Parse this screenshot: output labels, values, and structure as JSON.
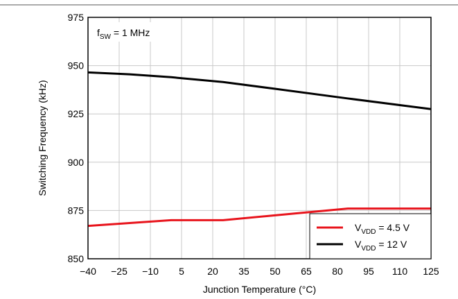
{
  "chart_data": {
    "type": "line",
    "annotation": {
      "main": "f",
      "sub": "SW",
      "rest": " = 1 MHz"
    },
    "xlabel": "Junction Temperature (°C)",
    "ylabel": "Switching Frequency (kHz)",
    "xlim": [
      -40,
      125
    ],
    "ylim": [
      850,
      975
    ],
    "xticks": [
      -40,
      -25,
      -10,
      5,
      20,
      35,
      50,
      65,
      80,
      95,
      110,
      125
    ],
    "xtick_labels": [
      "−40",
      "−25",
      "−10",
      "5",
      "20",
      "35",
      "50",
      "65",
      "80",
      "95",
      "110",
      "125"
    ],
    "yticks": [
      850,
      875,
      900,
      925,
      950,
      975
    ],
    "ytick_labels": [
      "850",
      "875",
      "900",
      "925",
      "950",
      "975"
    ],
    "grid": true,
    "legend_position": "bottom-right",
    "series": [
      {
        "legend_main": "V",
        "legend_sub": "VDD",
        "legend_rest": " = 4.5 V",
        "color": "#e8141c",
        "x": [
          -40,
          -20,
          0,
          25,
          50,
          85,
          125
        ],
        "y": [
          867,
          868.5,
          870,
          870,
          872.5,
          876,
          876
        ]
      },
      {
        "legend_main": "V",
        "legend_sub": "VDD",
        "legend_rest": " = 12 V",
        "color": "#000000",
        "x": [
          -40,
          -20,
          0,
          25,
          50,
          85,
          125
        ],
        "y": [
          946.5,
          945.5,
          944,
          941.5,
          938,
          933,
          927.5
        ]
      }
    ]
  }
}
